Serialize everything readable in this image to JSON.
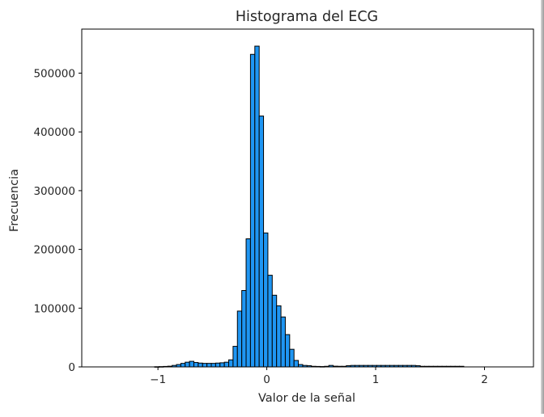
{
  "chart_data": {
    "type": "histogram",
    "title": "Histograma del ECG",
    "xlabel": "Valor de la señal",
    "ylabel": "Frecuencia",
    "xlim": [
      -1.7,
      2.45
    ],
    "ylim": [
      0,
      575000
    ],
    "xticks": [
      -1,
      0,
      1,
      2
    ],
    "xtick_labels": [
      "−1",
      "0",
      "1",
      "2"
    ],
    "yticks": [
      0,
      100000,
      200000,
      300000,
      400000,
      500000
    ],
    "ytick_labels": [
      "0",
      "100000",
      "200000",
      "300000",
      "400000",
      "500000"
    ],
    "bin_start": -1.35,
    "bin_width": 0.04,
    "counts": [
      0,
      0,
      0,
      0,
      0,
      0,
      0,
      0,
      300,
      500,
      800,
      1200,
      2500,
      4000,
      6000,
      8000,
      9500,
      7500,
      6500,
      6000,
      6000,
      6000,
      6500,
      7000,
      8000,
      12000,
      35000,
      95000,
      130000,
      218000,
      532000,
      546000,
      427000,
      228000,
      156000,
      122000,
      104000,
      85000,
      55000,
      30000,
      11000,
      4000,
      2500,
      2000,
      1000,
      800,
      600,
      1000,
      2500,
      1200,
      1000,
      1000,
      2000,
      2500,
      2500,
      2500,
      2500,
      2500,
      2500,
      2500,
      2500,
      2500,
      2500,
      2500,
      2500,
      2500,
      2500,
      2500,
      2000,
      1000,
      1000,
      1000,
      1000,
      1000,
      1000,
      1000,
      1000,
      1000,
      1000,
      0,
      0,
      0,
      0,
      0,
      0,
      0,
      0,
      0,
      0,
      0,
      0
    ],
    "bar_color": "#1f96f3",
    "edge_color": "#000000",
    "grid": false
  }
}
